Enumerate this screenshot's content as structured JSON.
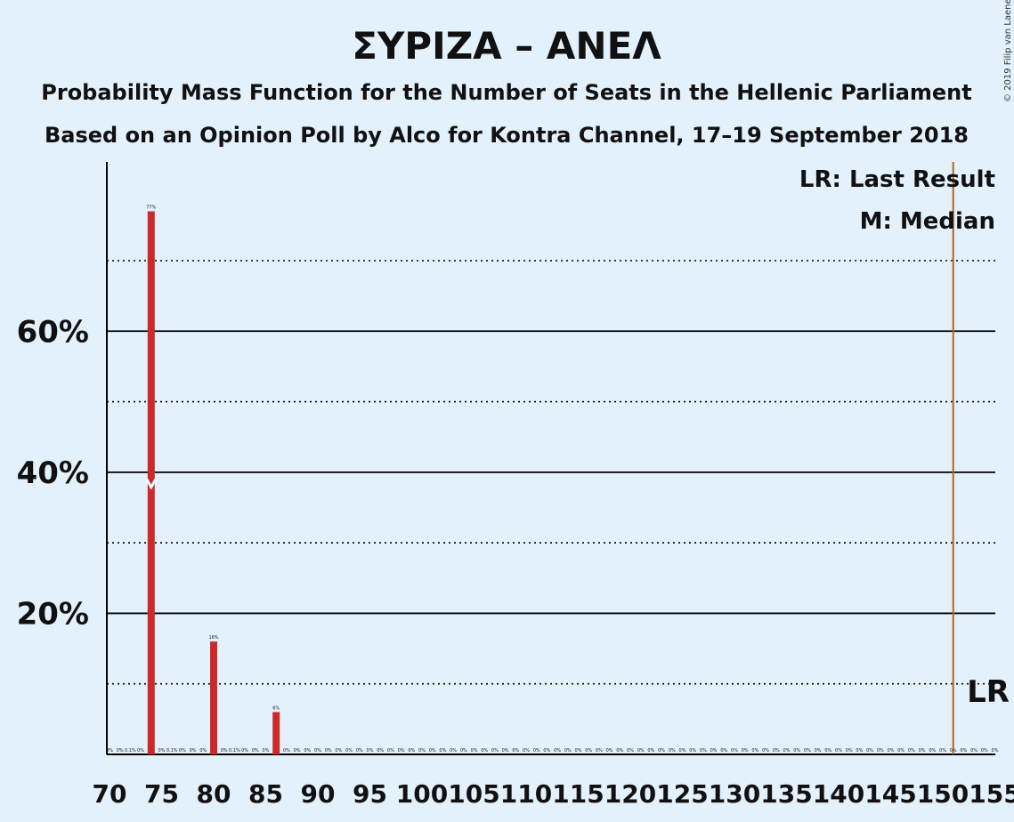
{
  "chart_data": {
    "type": "bar",
    "title": "ΣΥΡΙΖΑ – ΑΝΕΛ",
    "subtitle_1": "Probability Mass Function for the Number of Seats in the Hellenic Parliament",
    "subtitle_2": "Based on an Opinion Poll by Alco for Kontra Channel, 17–19 September 2018",
    "copyright": "© 2019 Filip van Laenen",
    "x": [
      70,
      71,
      72,
      73,
      74,
      75,
      76,
      77,
      78,
      79,
      80,
      81,
      82,
      83,
      84,
      85,
      86,
      87,
      88,
      89,
      90,
      91,
      92,
      93,
      94,
      95,
      96,
      97,
      98,
      99,
      100,
      101,
      102,
      103,
      104,
      105,
      106,
      107,
      108,
      109,
      110,
      111,
      112,
      113,
      114,
      115,
      116,
      117,
      118,
      119,
      120,
      121,
      122,
      123,
      124,
      125,
      126,
      127,
      128,
      129,
      130,
      131,
      132,
      133,
      134,
      135,
      136,
      137,
      138,
      139,
      140,
      141,
      142,
      143,
      144,
      145,
      146,
      147,
      148,
      149,
      150,
      151,
      152,
      153,
      154,
      155
    ],
    "values": [
      0,
      0,
      0.1,
      0,
      77,
      0,
      0.1,
      0,
      0,
      0,
      16,
      0,
      0.1,
      0,
      0,
      0,
      6,
      0,
      0,
      0,
      0,
      0,
      0,
      0,
      0,
      0,
      0,
      0,
      0,
      0,
      0,
      0,
      0,
      0,
      0,
      0,
      0,
      0,
      0,
      0,
      0,
      0,
      0,
      0,
      0,
      0,
      0,
      0,
      0,
      0,
      0,
      0,
      0,
      0,
      0,
      0,
      0,
      0,
      0,
      0,
      0,
      0,
      0,
      0,
      0,
      0,
      0,
      0,
      0,
      0,
      0,
      0,
      0,
      0,
      0,
      0,
      0,
      0,
      0,
      0,
      0,
      0,
      0,
      0,
      0,
      0
    ],
    "bar_labels": [
      "0%",
      "0%",
      "0.1%",
      "0%",
      "77%",
      "0%",
      "0.1%",
      "0%",
      "0%",
      "0%",
      "16%",
      "0%",
      "0.1%",
      "0%",
      "0%",
      "0%",
      "6%",
      "0%",
      "0%",
      "0%",
      "0%",
      "0%",
      "0%",
      "0%",
      "0%",
      "0%",
      "0%",
      "0%",
      "0%",
      "0%",
      "0%",
      "0%",
      "0%",
      "0%",
      "0%",
      "0%",
      "0%",
      "0%",
      "0%",
      "0%",
      "0%",
      "0%",
      "0%",
      "0%",
      "0%",
      "0%",
      "0%",
      "0%",
      "0%",
      "0%",
      "0%",
      "0%",
      "0%",
      "0%",
      "0%",
      "0%",
      "0%",
      "0%",
      "0%",
      "0%",
      "0%",
      "0%",
      "0%",
      "0%",
      "0%",
      "0%",
      "0%",
      "0%",
      "0%",
      "0%",
      "0%",
      "0%",
      "0%",
      "0%",
      "0%",
      "0%",
      "0%",
      "0%",
      "0%",
      "0%",
      "0%",
      "0%",
      "0%",
      "0%",
      "0%",
      "0%"
    ],
    "x_ticks": [
      70,
      75,
      80,
      85,
      90,
      95,
      100,
      105,
      110,
      115,
      120,
      125,
      130,
      135,
      140,
      145,
      150,
      155
    ],
    "y_ticks": [
      20,
      40,
      60
    ],
    "y_tick_labels": [
      "20%",
      "40%",
      "60%"
    ],
    "ylim": [
      0,
      84
    ],
    "grid_solid": [
      20,
      40,
      60
    ],
    "grid_dotted": [
      10,
      30,
      50,
      70
    ],
    "median": 74,
    "median_marker": "M",
    "last_result": 151,
    "last_result_label": "LR",
    "legend": [
      "LR: Last Result",
      "M: Median"
    ],
    "colors": {
      "background": "#e3f1fd",
      "bar": "#cc2a2a",
      "last_result_line": "#b5651d",
      "median_marker": "#ffffff",
      "axis": "#000000"
    }
  }
}
